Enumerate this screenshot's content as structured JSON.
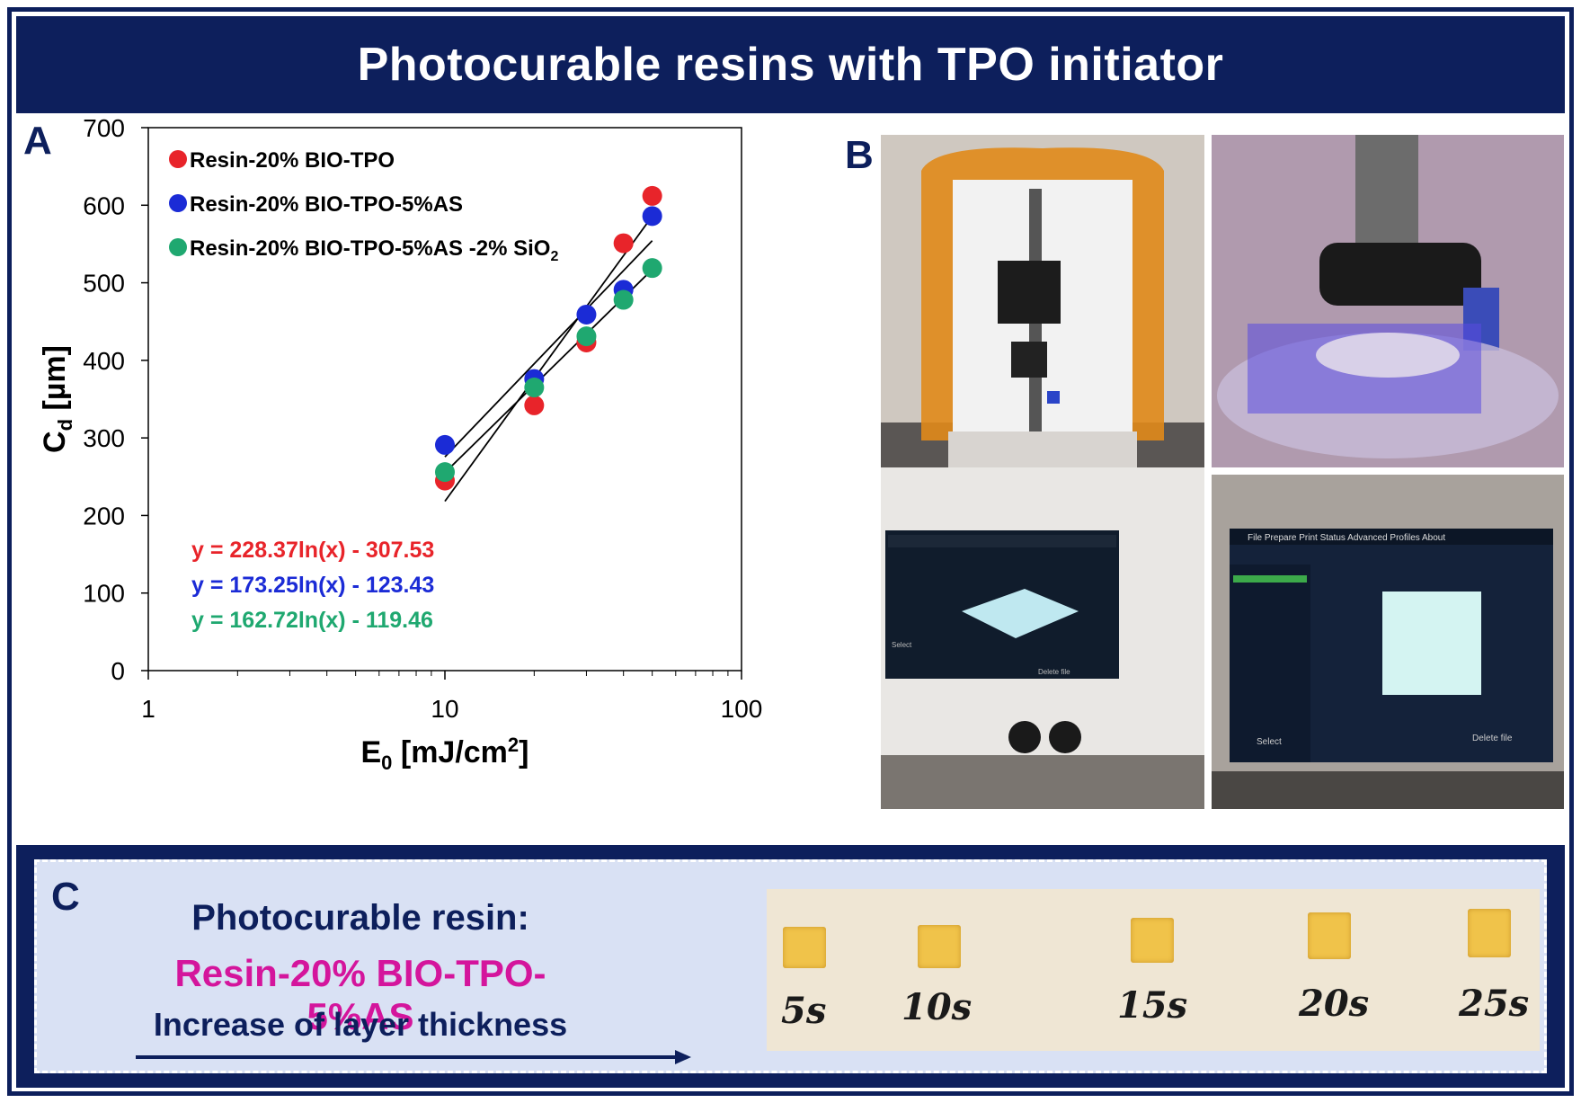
{
  "title": "Photocurable resins with TPO initiator",
  "panels": {
    "a": "A",
    "b": "B",
    "c": "C"
  },
  "chart_data": {
    "type": "scatter",
    "xscale": "log",
    "xlim": [
      1,
      100
    ],
    "ylim": [
      0,
      700
    ],
    "xticks": [
      "1",
      "10",
      "100"
    ],
    "yticks": [
      "0",
      "100",
      "200",
      "300",
      "400",
      "500",
      "600",
      "700"
    ],
    "xlabel": "E",
    "xlabel_sub": "0",
    "xlabel_unit": "[mJ/cm",
    "xlabel_sup": "2",
    "xlabel_end": "]",
    "ylabel": "C",
    "ylabel_sub": "d",
    "ylabel_unit": "[µm]",
    "legend_position": "top-left",
    "series": [
      {
        "name": "Resin-20% BIO-TPO",
        "color": "#e8242a",
        "x": [
          10,
          20,
          30,
          40,
          50
        ],
        "y": [
          245,
          342,
          423,
          551,
          612
        ],
        "fit": {
          "a": 228.37,
          "b": -307.53,
          "label": "y = 228.37ln(x) - 307.53"
        }
      },
      {
        "name": "Resin-20% BIO-TPO-5%AS",
        "color": "#1b2bd6",
        "x": [
          10,
          20,
          30,
          40,
          50
        ],
        "y": [
          291,
          376,
          459,
          491,
          586
        ],
        "fit": {
          "a": 173.25,
          "b": -123.43,
          "label": "y = 173.25ln(x) - 123.43"
        }
      },
      {
        "name": "Resin-20% BIO-TPO-5%AS -2% SiO",
        "name_sub": "2",
        "color": "#1fa870",
        "x": [
          10,
          20,
          30,
          40,
          50
        ],
        "y": [
          256,
          365,
          431,
          478,
          519
        ],
        "fit": {
          "a": 162.72,
          "b": -119.46,
          "label": "y = 162.72ln(x) - 119.46"
        }
      }
    ]
  },
  "photos": {
    "screen_menu": [
      "File",
      "Prepare",
      "Print",
      "Status",
      "Advanced",
      "Profiles",
      "About"
    ],
    "screen_select": "Select",
    "screen_delete": "Delete file"
  },
  "panel_c": {
    "heading": "Photocurable resin:",
    "resin": "Resin-20% BIO-TPO-5%AS",
    "increase": "Increase of layer thickness",
    "samples": [
      "5s",
      "10s",
      "15s",
      "20s",
      "25s"
    ]
  }
}
